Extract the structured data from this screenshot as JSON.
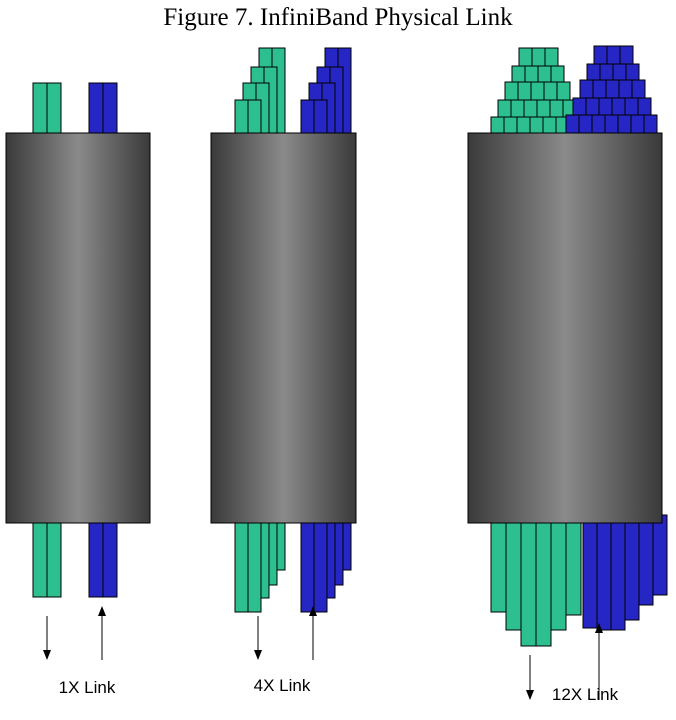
{
  "figure": {
    "title": "Figure 7. InfiniBand Physical Link",
    "colors": {
      "send_lane": "#2EBF91",
      "receive_lane": "#2626C4",
      "cable_dark": "#3A3A3A",
      "cable_light": "#8A8A8A",
      "outline": "#000000"
    },
    "links": [
      {
        "label": "1X Link",
        "lanes_per_direction": 1
      },
      {
        "label": "4X Link",
        "lanes_per_direction": 4
      },
      {
        "label": "12X Link",
        "lanes_per_direction": 12
      }
    ]
  }
}
